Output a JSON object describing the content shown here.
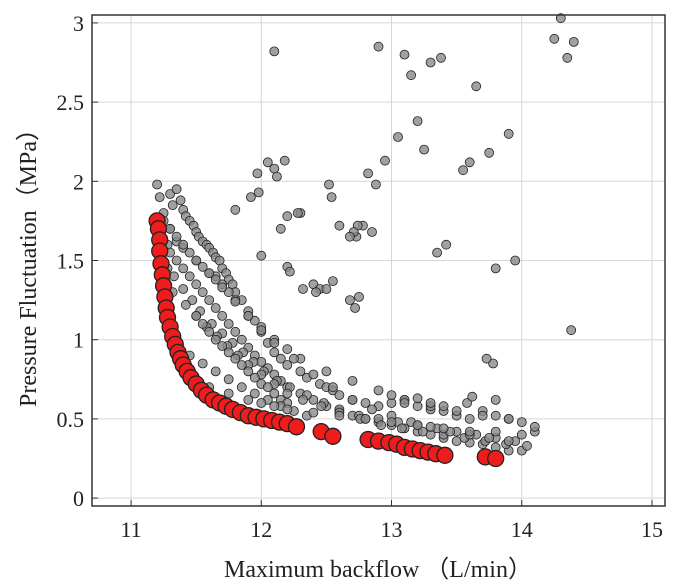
{
  "chart_data": {
    "type": "scatter",
    "title": "",
    "xlabel": "Maximum backflow （L/min）",
    "ylabel": "Pressure Fluctuation（MPa）",
    "xlim": [
      10.7,
      15.1
    ],
    "ylim": [
      -0.05,
      3.05
    ],
    "x_ticks": [
      11,
      12,
      13,
      14,
      15
    ],
    "y_ticks": [
      0,
      0.5,
      1,
      1.5,
      2,
      2.5,
      3
    ],
    "grid": true,
    "colors": {
      "pareto": "#ee1c1c",
      "samples": "#8a8a8a",
      "grid": "#d6d6d6",
      "frame": "#333333"
    },
    "series": [
      {
        "role": "samples",
        "x": [
          11.2,
          11.22,
          11.25,
          11.3,
          11.32,
          11.35,
          11.38,
          11.4,
          11.42,
          11.45,
          11.48,
          11.5,
          11.52,
          11.55,
          11.58,
          11.6,
          11.63,
          11.65,
          11.68,
          11.7,
          11.73,
          11.75,
          11.78,
          11.8,
          11.85,
          11.9,
          11.95,
          12.0,
          12.05,
          12.1,
          12.15,
          12.2,
          12.3,
          12.35,
          12.45,
          12.5,
          12.55,
          12.6,
          12.7,
          12.8,
          12.9,
          13.0,
          13.1,
          13.2,
          13.3,
          13.4,
          13.5,
          13.6,
          13.7,
          13.8,
          13.9,
          14.0,
          14.1,
          11.28,
          11.3,
          11.35,
          11.4,
          11.45,
          11.5,
          11.55,
          11.6,
          11.65,
          11.7,
          11.75,
          11.8,
          11.85,
          11.9,
          11.95,
          12.0,
          12.05,
          12.1,
          12.15,
          12.2,
          12.3,
          12.4,
          12.5,
          12.6,
          12.7,
          12.8,
          12.9,
          13.0,
          13.1,
          13.2,
          13.3,
          13.4,
          13.5,
          13.6,
          13.7,
          13.8,
          13.9,
          14.0,
          11.3,
          11.35,
          11.4,
          11.5,
          11.6,
          11.65,
          11.7,
          11.75,
          11.8,
          11.9,
          12.0,
          12.1,
          12.2,
          12.3,
          12.5,
          12.7,
          12.9,
          13.1,
          13.3,
          13.5,
          13.7,
          13.9,
          14.1,
          11.28,
          11.33,
          11.4,
          11.47,
          11.53,
          11.62,
          11.7,
          11.78,
          11.86,
          11.94,
          12.02,
          12.12,
          12.22,
          12.35,
          12.48,
          12.6,
          12.75,
          12.9,
          13.05,
          13.2,
          13.35,
          13.5,
          13.65,
          13.8,
          13.95,
          11.32,
          11.42,
          11.5,
          11.58,
          11.66,
          11.74,
          11.82,
          11.9,
          12.0,
          12.1,
          12.2,
          12.32,
          12.46,
          12.6,
          12.76,
          12.92,
          13.08,
          13.24,
          13.4,
          13.56,
          13.72,
          13.88,
          14.04,
          11.25,
          11.3,
          11.35,
          11.4,
          11.45,
          11.5,
          11.55,
          11.6,
          11.65,
          11.7,
          11.8,
          11.9,
          12.0,
          12.1,
          12.25,
          12.4,
          12.55,
          12.7,
          12.85,
          13.0,
          13.15,
          13.3,
          13.45,
          13.6,
          13.75,
          13.9,
          11.5,
          11.55,
          11.6,
          11.65,
          11.7,
          11.75,
          11.8,
          11.85,
          11.9,
          11.95,
          12.0,
          12.05,
          12.1,
          12.15,
          12.2,
          11.45,
          11.55,
          11.65,
          11.75,
          11.85,
          11.95,
          12.05,
          12.15,
          12.25,
          12.35,
          11.6,
          11.75,
          11.9,
          12.0,
          12.1,
          12.2,
          12.4,
          12.6,
          12.8,
          13.0,
          13.2,
          13.4,
          13.6,
          13.8,
          14.0,
          13.0,
          13.1,
          13.2,
          13.3,
          13.4,
          12.1,
          12.15,
          12.2,
          12.3,
          12.4,
          12.45,
          12.55,
          12.6,
          12.68,
          12.72,
          12.75,
          12.82,
          12.88,
          12.9,
          12.95,
          13.05,
          13.1,
          13.15,
          13.2,
          13.25,
          13.3,
          13.35,
          13.38,
          13.42,
          13.55,
          13.6,
          13.65,
          13.75,
          13.8,
          13.9,
          13.95,
          14.3,
          14.35,
          14.4,
          14.25,
          14.38,
          11.8,
          11.98,
          12.05,
          12.1,
          12.18,
          12.0,
          12.2,
          11.92,
          11.97,
          12.12,
          12.28,
          12.52,
          12.54,
          12.78,
          12.85,
          12.73,
          12.74,
          12.71,
          12.68,
          12.42,
          12.5,
          12.32,
          12.22,
          13.78,
          13.73,
          13.8,
          13.58,
          13.62
        ],
        "y": [
          1.98,
          1.9,
          1.8,
          1.92,
          1.85,
          1.95,
          1.88,
          1.82,
          1.78,
          1.75,
          1.72,
          1.68,
          1.65,
          1.62,
          1.6,
          1.58,
          1.55,
          1.52,
          1.5,
          1.45,
          1.42,
          1.38,
          1.35,
          1.3,
          1.25,
          1.18,
          1.12,
          1.05,
          0.98,
          0.92,
          0.88,
          0.84,
          0.8,
          0.76,
          0.72,
          0.7,
          0.68,
          0.65,
          0.62,
          0.6,
          0.58,
          0.6,
          0.62,
          0.58,
          0.56,
          0.55,
          0.52,
          0.5,
          0.55,
          0.52,
          0.5,
          0.48,
          0.42,
          1.6,
          1.55,
          1.5,
          1.45,
          1.4,
          1.35,
          1.3,
          1.25,
          1.2,
          1.15,
          1.1,
          1.05,
          1.0,
          0.95,
          0.9,
          0.86,
          0.82,
          0.78,
          0.74,
          0.7,
          0.66,
          0.62,
          0.58,
          0.55,
          0.52,
          0.5,
          0.48,
          0.46,
          0.44,
          0.42,
          0.4,
          0.38,
          0.36,
          0.35,
          0.34,
          0.32,
          0.3,
          0.3,
          1.7,
          1.62,
          1.58,
          1.5,
          1.42,
          1.4,
          1.35,
          1.3,
          1.25,
          1.15,
          1.08,
          1.0,
          0.94,
          0.88,
          0.8,
          0.74,
          0.68,
          0.62,
          0.58,
          0.55,
          0.52,
          0.5,
          0.45,
          1.45,
          1.4,
          1.32,
          1.25,
          1.18,
          1.1,
          1.04,
          0.98,
          0.92,
          0.86,
          0.8,
          0.74,
          0.7,
          0.65,
          0.6,
          0.56,
          0.52,
          0.5,
          0.48,
          0.46,
          0.44,
          0.42,
          0.4,
          0.38,
          0.36,
          1.3,
          1.22,
          1.15,
          1.08,
          1.02,
          0.96,
          0.9,
          0.84,
          0.78,
          0.72,
          0.66,
          0.62,
          0.58,
          0.54,
          0.5,
          0.46,
          0.44,
          0.42,
          0.4,
          0.38,
          0.36,
          0.34,
          0.33,
          1.75,
          1.7,
          1.65,
          1.6,
          1.55,
          1.5,
          1.46,
          1.42,
          1.38,
          1.33,
          1.24,
          1.15,
          1.06,
          0.98,
          0.88,
          0.78,
          0.7,
          0.62,
          0.56,
          0.52,
          0.48,
          0.45,
          0.42,
          0.4,
          0.38,
          0.36,
          1.15,
          1.1,
          1.05,
          1.0,
          0.96,
          0.92,
          0.88,
          0.84,
          0.8,
          0.76,
          0.72,
          0.7,
          0.66,
          0.62,
          0.6,
          0.9,
          0.85,
          0.8,
          0.75,
          0.7,
          0.66,
          0.62,
          0.58,
          0.55,
          0.52,
          0.7,
          0.66,
          0.62,
          0.6,
          0.58,
          0.56,
          0.54,
          0.52,
          0.5,
          0.48,
          0.46,
          0.44,
          0.42,
          0.42,
          0.4,
          0.65,
          0.6,
          0.63,
          0.6,
          0.58,
          2.82,
          1.7,
          1.78,
          1.8,
          1.35,
          1.32,
          1.37,
          1.72,
          1.25,
          1.2,
          1.27,
          2.05,
          1.98,
          2.85,
          2.13,
          2.28,
          2.8,
          2.67,
          2.38,
          2.2,
          2.75,
          1.55,
          2.78,
          1.6,
          2.07,
          2.12,
          2.6,
          2.18,
          1.45,
          2.3,
          1.5,
          3.03,
          2.78,
          2.88,
          2.9,
          1.06,
          1.82,
          1.93,
          2.12,
          2.08,
          2.13,
          1.53,
          1.46,
          1.9,
          2.05,
          2.03,
          1.8,
          1.98,
          1.9,
          1.72,
          1.68,
          1.65,
          1.72,
          1.68,
          1.65,
          1.3,
          1.32,
          1.32,
          1.43,
          0.85,
          0.88,
          0.62,
          0.6,
          0.64
        ]
      },
      {
        "role": "pareto",
        "x": [
          11.2,
          11.21,
          11.22,
          11.22,
          11.23,
          11.24,
          11.25,
          11.26,
          11.27,
          11.28,
          11.3,
          11.32,
          11.34,
          11.36,
          11.38,
          11.4,
          11.43,
          11.46,
          11.5,
          11.54,
          11.58,
          11.63,
          11.68,
          11.73,
          11.78,
          11.84,
          11.9,
          11.96,
          12.02,
          12.08,
          12.14,
          12.2,
          12.27,
          12.46,
          12.55,
          12.82,
          12.9,
          12.98,
          13.04,
          13.1,
          13.16,
          13.22,
          13.28,
          13.34,
          13.41,
          13.72,
          13.8
        ],
        "y": [
          1.75,
          1.7,
          1.63,
          1.56,
          1.48,
          1.41,
          1.34,
          1.27,
          1.2,
          1.14,
          1.08,
          1.02,
          0.97,
          0.92,
          0.88,
          0.84,
          0.8,
          0.76,
          0.72,
          0.68,
          0.65,
          0.62,
          0.6,
          0.58,
          0.56,
          0.54,
          0.52,
          0.51,
          0.5,
          0.49,
          0.48,
          0.47,
          0.45,
          0.42,
          0.39,
          0.37,
          0.36,
          0.35,
          0.34,
          0.32,
          0.31,
          0.3,
          0.29,
          0.28,
          0.27,
          0.26,
          0.25
        ]
      }
    ]
  }
}
